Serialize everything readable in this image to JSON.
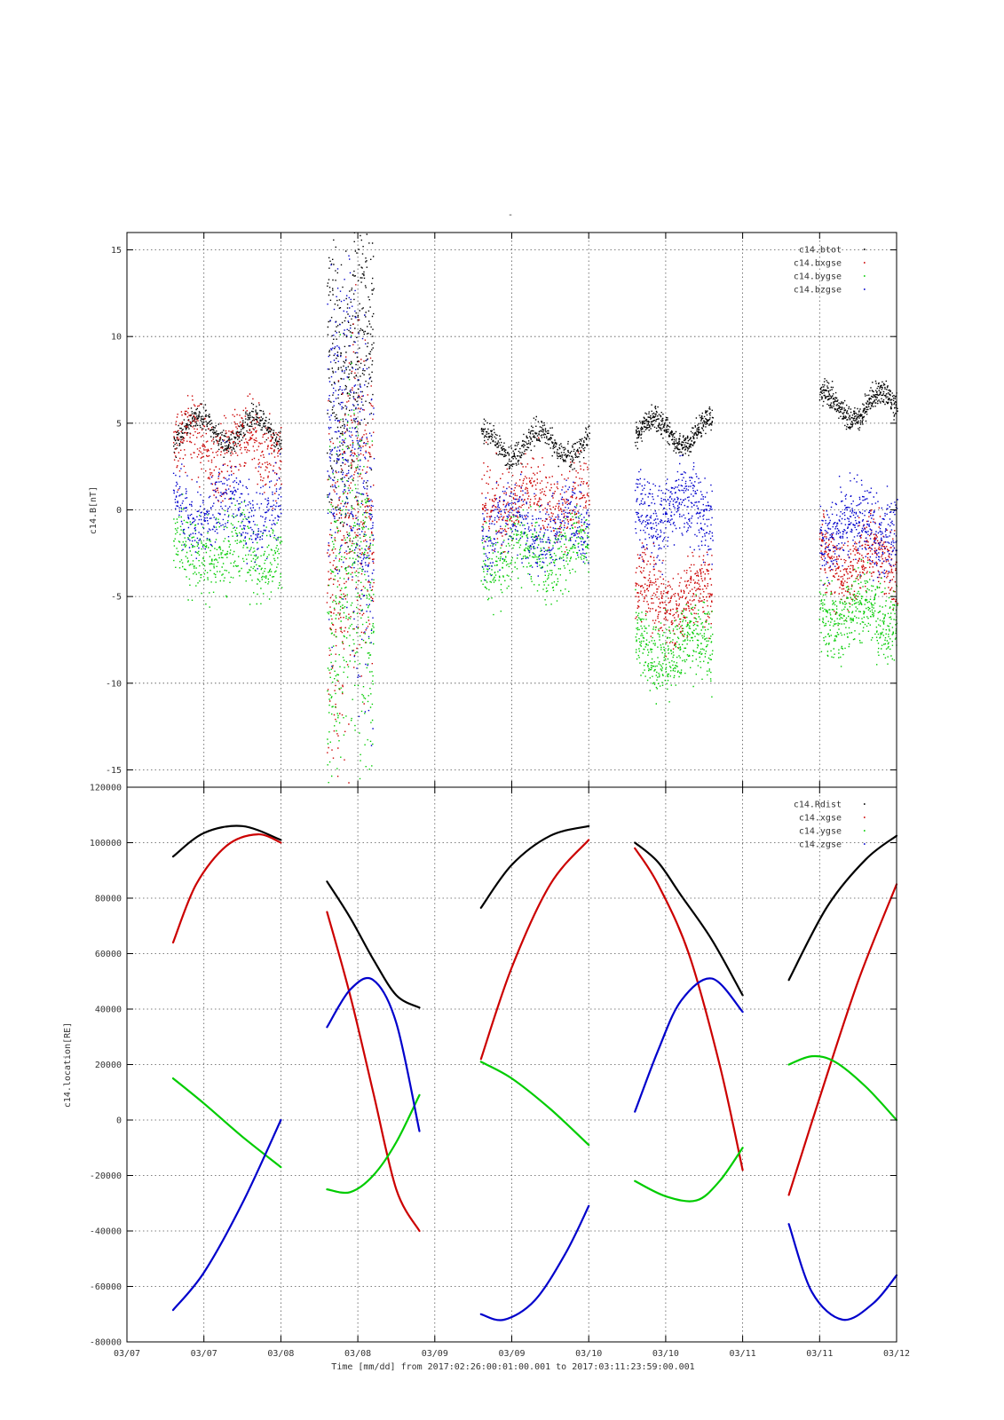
{
  "title": "-",
  "time_label": "Time [mm/dd]  from 2017:02:26:00:01:00.001  to  2017:03:11:23:59:00.001",
  "colors": {
    "black": "#000000",
    "red": "#cc0000",
    "green": "#00cc00",
    "blue": "#0000cc"
  },
  "chart_data": [
    {
      "type": "scatter",
      "ylabel": "c14.B[nT]",
      "ylim": [
        -16,
        16
      ],
      "yticks": [
        -15,
        -10,
        -5,
        0,
        5,
        10,
        15
      ],
      "xlim": [
        0,
        5
      ],
      "x_tick_labels": [
        "03/07",
        "03/07",
        "03/08",
        "03/08",
        "03/09",
        "03/09",
        "03/10",
        "03/10",
        "03/11",
        "03/11",
        "03/12"
      ],
      "grid": true,
      "legend_position": "top-right",
      "series": [
        {
          "name": "c14.btot",
          "color": "#000000"
        },
        {
          "name": "c14.bxgse",
          "color": "#cc0000"
        },
        {
          "name": "c14.bygse",
          "color": "#00cc00"
        },
        {
          "name": "c14.bzgse",
          "color": "#0000cc"
        }
      ],
      "segments": [
        {
          "x": [
            0.3,
            1.0
          ],
          "btot": 4.6,
          "bx": 3.5,
          "by": -2.5,
          "bz": 0.0
        },
        {
          "x": [
            1.3,
            1.6
          ],
          "btot": 10,
          "bx": -2,
          "by": -5,
          "bz": 2
        },
        {
          "x": [
            2.3,
            3.0
          ],
          "btot": 3.8,
          "bx": 0.5,
          "by": -2.5,
          "bz": -1.0
        },
        {
          "x": [
            3.3,
            3.8
          ],
          "btot": 4.5,
          "bx": -5,
          "by": -8,
          "bz": 0
        },
        {
          "x": [
            4.5,
            5.0
          ],
          "btot": 6,
          "bx": -3,
          "by": -6,
          "bz": -1
        }
      ]
    },
    {
      "type": "line",
      "ylabel": "c14.location[RE]",
      "ylim": [
        -80000,
        120000
      ],
      "yticks": [
        -80000,
        -60000,
        -40000,
        -20000,
        0,
        20000,
        40000,
        60000,
        80000,
        100000,
        120000
      ],
      "xlim": [
        0,
        5
      ],
      "x_tick_labels": [
        "03/07",
        "03/07",
        "03/08",
        "03/08",
        "03/09",
        "03/09",
        "03/10",
        "03/10",
        "03/11",
        "03/11",
        "03/12"
      ],
      "grid": true,
      "legend_position": "top-right",
      "series": [
        {
          "name": "c14.Rdist",
          "color": "#000000",
          "segments": [
            {
              "x": [
                0.3,
                0.5,
                0.75,
                1.0
              ],
              "y": [
                95000,
                103500,
                106000,
                101000
              ]
            },
            {
              "x": [
                1.3,
                1.45,
                1.6,
                1.75,
                1.9
              ],
              "y": [
                86000,
                73000,
                58000,
                45000,
                40500
              ]
            },
            {
              "x": [
                2.3,
                2.5,
                2.75,
                3.0
              ],
              "y": [
                76500,
                92000,
                102500,
                106000
              ]
            },
            {
              "x": [
                3.3,
                3.45,
                3.6,
                3.8,
                4.0
              ],
              "y": [
                100000,
                93000,
                81000,
                65000,
                45000
              ]
            },
            {
              "x": [
                4.3,
                4.55,
                4.8,
                5.0
              ],
              "y": [
                50500,
                77000,
                94000,
                102500
              ]
            }
          ]
        },
        {
          "name": "c14.xgse",
          "color": "#cc0000",
          "segments": [
            {
              "x": [
                0.3,
                0.45,
                0.65,
                0.85,
                1.0
              ],
              "y": [
                64000,
                85000,
                99000,
                103000,
                100000
              ]
            },
            {
              "x": [
                1.3,
                1.45,
                1.6,
                1.75,
                1.9
              ],
              "y": [
                75000,
                45000,
                10000,
                -25000,
                -40000
              ]
            },
            {
              "x": [
                2.3,
                2.5,
                2.75,
                3.0
              ],
              "y": [
                22000,
                55000,
                85000,
                101000
              ]
            },
            {
              "x": [
                3.3,
                3.45,
                3.65,
                3.85,
                4.0
              ],
              "y": [
                98000,
                85000,
                60000,
                20000,
                -18000
              ]
            },
            {
              "x": [
                4.3,
                4.5,
                4.75,
                5.0
              ],
              "y": [
                -27000,
                8000,
                50000,
                85000
              ]
            }
          ]
        },
        {
          "name": "c14.ygse",
          "color": "#00cc00",
          "segments": [
            {
              "x": [
                0.3,
                0.5,
                0.75,
                1.0
              ],
              "y": [
                15000,
                6000,
                -6000,
                -17000
              ]
            },
            {
              "x": [
                1.3,
                1.45,
                1.6,
                1.75,
                1.9
              ],
              "y": [
                -25000,
                -26000,
                -20000,
                -8000,
                9000
              ]
            },
            {
              "x": [
                2.3,
                2.5,
                2.75,
                3.0
              ],
              "y": [
                21000,
                15000,
                4000,
                -9000
              ]
            },
            {
              "x": [
                3.3,
                3.5,
                3.7,
                3.85,
                4.0
              ],
              "y": [
                -22000,
                -27500,
                -29000,
                -22000,
                -10000
              ]
            },
            {
              "x": [
                4.3,
                4.45,
                4.6,
                4.8,
                5.0
              ],
              "y": [
                20000,
                23000,
                21000,
                12000,
                0
              ]
            }
          ]
        },
        {
          "name": "c14.zgse",
          "color": "#0000cc",
          "segments": [
            {
              "x": [
                0.3,
                0.5,
                0.75,
                1.0
              ],
              "y": [
                -68500,
                -55000,
                -30000,
                0
              ]
            },
            {
              "x": [
                1.3,
                1.45,
                1.6,
                1.75,
                1.9
              ],
              "y": [
                33500,
                47000,
                50500,
                35000,
                -4000
              ]
            },
            {
              "x": [
                2.3,
                2.45,
                2.65,
                2.85,
                3.0
              ],
              "y": [
                -70000,
                -72000,
                -65000,
                -48000,
                -31000
              ]
            },
            {
              "x": [
                3.3,
                3.45,
                3.6,
                3.8,
                4.0
              ],
              "y": [
                3000,
                25000,
                43000,
                51000,
                39000
              ]
            },
            {
              "x": [
                4.3,
                4.45,
                4.65,
                4.85,
                5.0
              ],
              "y": [
                -37500,
                -62000,
                -72000,
                -66000,
                -56000
              ]
            }
          ]
        }
      ]
    }
  ]
}
